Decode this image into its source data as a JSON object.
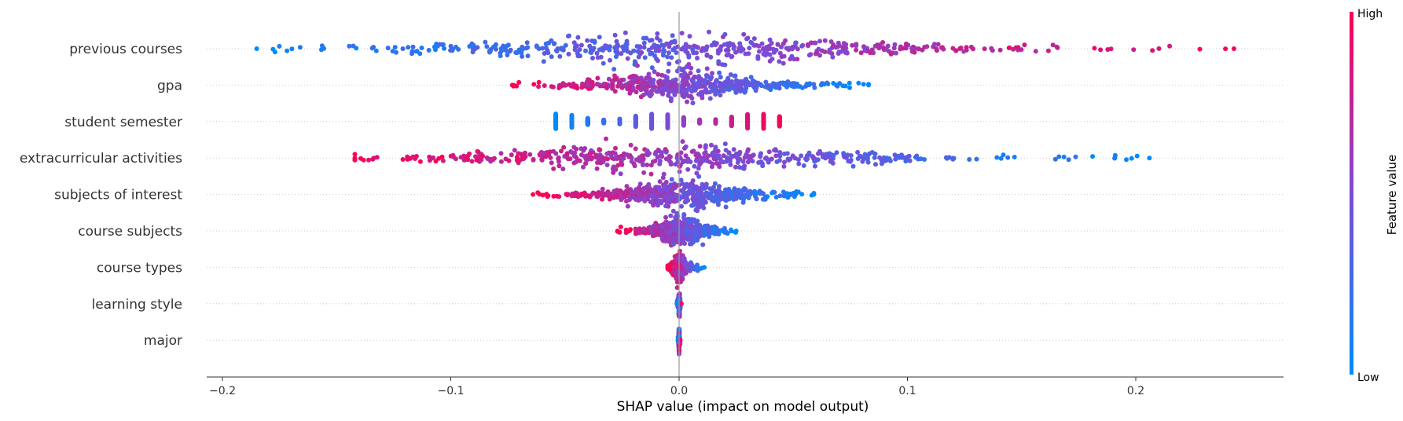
{
  "chart_data": {
    "type": "scatter",
    "subtype": "shap-beeswarm",
    "title": "",
    "xlabel": "SHAP value (impact on model output)",
    "ylabel": "",
    "xlim": [
      -0.21,
      0.265
    ],
    "xticks": [
      -0.2,
      -0.1,
      0.0,
      0.1,
      0.2
    ],
    "xtick_labels": [
      "−0.2",
      "−0.1",
      "0.0",
      "0.1",
      "0.2"
    ],
    "zero_line": 0.0,
    "grid": "horizontal dotted per feature",
    "colorbar": {
      "title": "Feature value",
      "high_label": "High",
      "low_label": "Low",
      "low_color": "#008bfb",
      "mid_color": "#7d4bd6",
      "high_color": "#ff0052",
      "placement": "right"
    },
    "features": [
      {
        "name": "previous courses",
        "shap_min": -0.185,
        "shap_max": 0.243,
        "trend": "positive"
      },
      {
        "name": "gpa",
        "shap_min": -0.073,
        "shap_max": 0.083,
        "trend": "negative"
      },
      {
        "name": "student semester",
        "shap_min": -0.054,
        "shap_max": 0.044,
        "trend": "positive",
        "discrete_values": [
          -0.054,
          -0.047,
          -0.04,
          -0.033,
          -0.026,
          -0.019,
          -0.012,
          -0.005,
          0.002,
          0.009,
          0.016,
          0.023,
          0.03,
          0.037,
          0.044
        ]
      },
      {
        "name": "extracurricular activities",
        "shap_min": -0.142,
        "shap_max": 0.206,
        "trend": "negative"
      },
      {
        "name": "subjects of interest",
        "shap_min": -0.064,
        "shap_max": 0.059,
        "trend": "negative"
      },
      {
        "name": "course subjects",
        "shap_min": -0.027,
        "shap_max": 0.025,
        "trend": "negative"
      },
      {
        "name": "course types",
        "shap_min": -0.005,
        "shap_max": 0.011,
        "trend": "negative"
      },
      {
        "name": "learning style",
        "shap_min": -0.001,
        "shap_max": 0.001,
        "trend": "mixed"
      },
      {
        "name": "major",
        "shap_min": -0.0005,
        "shap_max": 0.0005,
        "trend": "mixed"
      }
    ]
  }
}
